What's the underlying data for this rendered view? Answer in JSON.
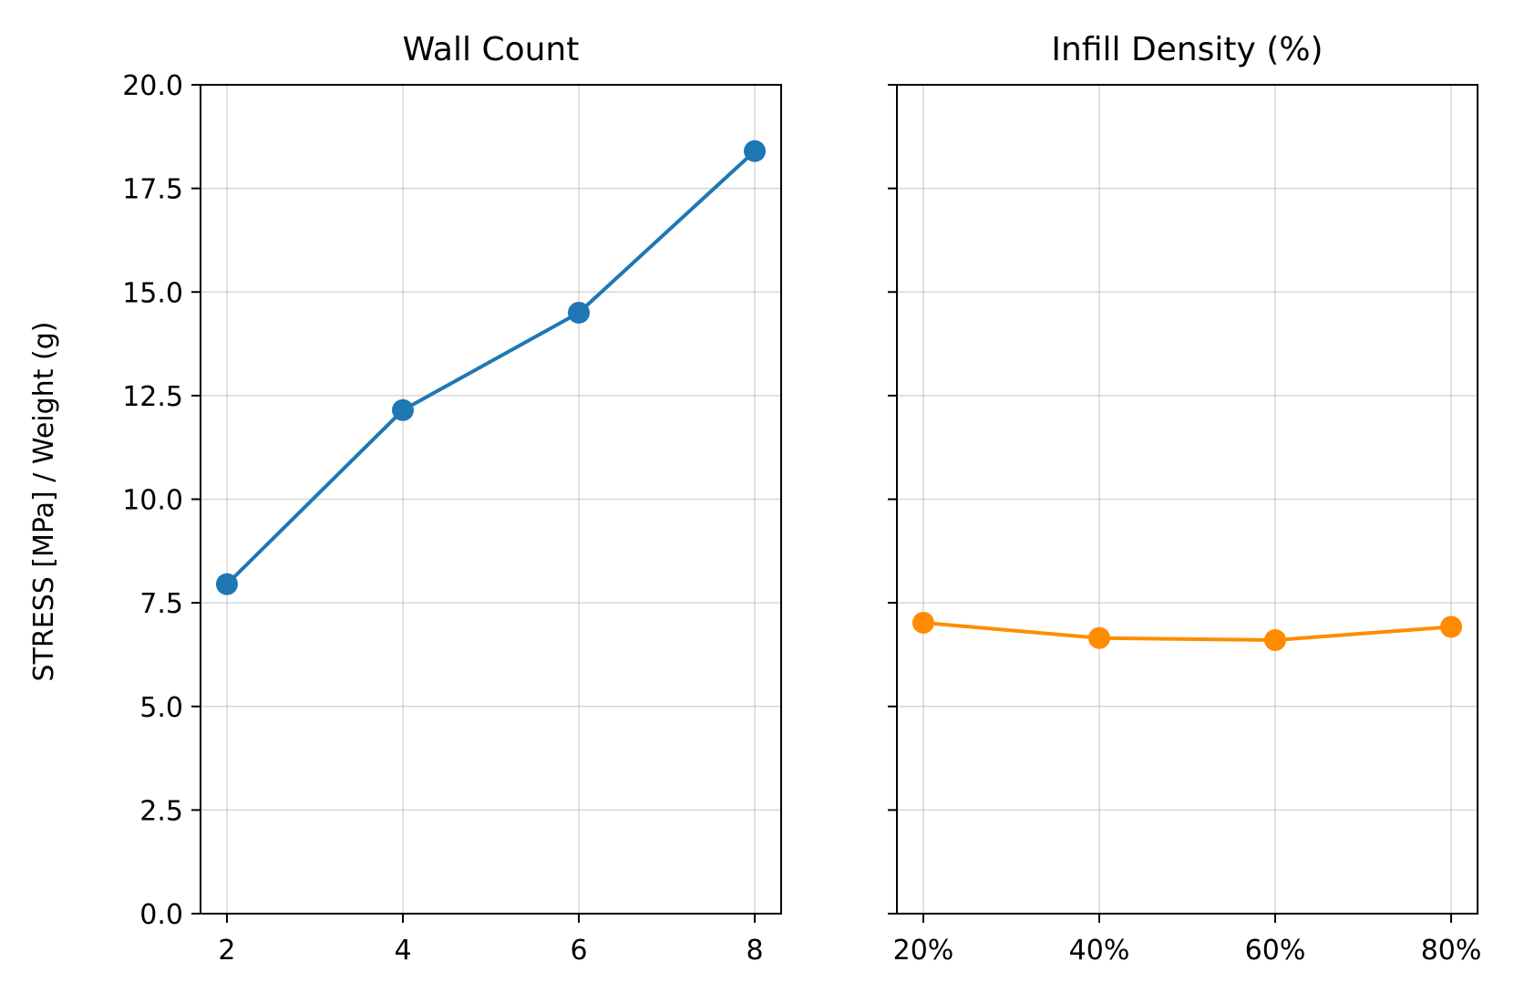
{
  "figure": {
    "ylabel": "STRESS [MPa] / Weight (g)"
  },
  "chart_data": [
    {
      "type": "line",
      "title": "Wall Count",
      "xlabel": "",
      "ylabel": "STRESS [MPa] / Weight (g)",
      "x": [
        2,
        4,
        6,
        8
      ],
      "x_tick_values": [
        2,
        4,
        6,
        8
      ],
      "x_tick_labels": [
        "2",
        "4",
        "6",
        "8"
      ],
      "xlim": [
        1.7,
        8.3
      ],
      "ylim": [
        0,
        20
      ],
      "y_tick_values": [
        0,
        2.5,
        5,
        7.5,
        10,
        12.5,
        15,
        17.5,
        20
      ],
      "y_tick_labels": [
        "0.0",
        "2.5",
        "5.0",
        "7.5",
        "10.0",
        "12.5",
        "15.0",
        "17.5",
        "20.0"
      ],
      "show_y_tick_labels": true,
      "grid": true,
      "series": [
        {
          "values": [
            7.95,
            12.15,
            14.5,
            18.4
          ],
          "color": "#1f77b4"
        }
      ]
    },
    {
      "type": "line",
      "title": "Infill Density (%)",
      "xlabel": "",
      "ylabel": "",
      "x": [
        20,
        40,
        60,
        80
      ],
      "x_tick_values": [
        20,
        40,
        60,
        80
      ],
      "x_tick_labels": [
        "20%",
        "40%",
        "60%",
        "80%"
      ],
      "xlim": [
        17,
        83
      ],
      "ylim": [
        0,
        20
      ],
      "y_tick_values": [
        0,
        2.5,
        5,
        7.5,
        10,
        12.5,
        15,
        17.5,
        20
      ],
      "y_tick_labels": [],
      "show_y_tick_labels": false,
      "grid": true,
      "series": [
        {
          "values": [
            7.02,
            6.65,
            6.6,
            6.92
          ],
          "color": "#ff8c00"
        }
      ]
    }
  ]
}
